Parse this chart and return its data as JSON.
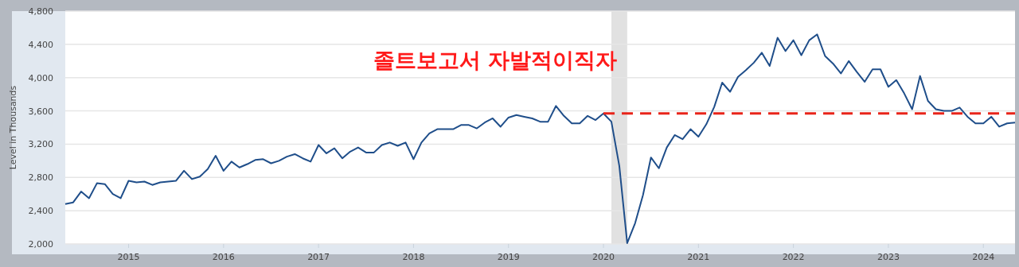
{
  "chart_data": {
    "type": "line",
    "ylabel": "Level in Thousands",
    "annotations": [
      "졸트보고서 자발적이직자"
    ],
    "xlim": [
      "2014-05",
      "2024-05"
    ],
    "xticks": [
      "2015",
      "2016",
      "2017",
      "2018",
      "2019",
      "2020",
      "2021",
      "2022",
      "2023",
      "2024"
    ],
    "ylim": [
      2000,
      4800
    ],
    "yticks": [
      {
        "value": 2000,
        "label": "2,000"
      },
      {
        "value": 2400,
        "label": "2,400"
      },
      {
        "value": 2800,
        "label": "2,800"
      },
      {
        "value": 3200,
        "label": "3,200"
      },
      {
        "value": 3600,
        "label": "3,600"
      },
      {
        "value": 4000,
        "label": "4,000"
      },
      {
        "value": 4400,
        "label": "4,400"
      },
      {
        "value": 4800,
        "label": "4,800"
      }
    ],
    "grid": "y",
    "bands": [
      {
        "axis": "x",
        "from": "2020-02",
        "to": "2020-04",
        "color": "#e1e1e1"
      }
    ],
    "x": [
      "2014-05",
      "2014-06",
      "2014-07",
      "2014-08",
      "2014-09",
      "2014-10",
      "2014-11",
      "2014-12",
      "2015-01",
      "2015-02",
      "2015-03",
      "2015-04",
      "2015-05",
      "2015-06",
      "2015-07",
      "2015-08",
      "2015-09",
      "2015-10",
      "2015-11",
      "2015-12",
      "2016-01",
      "2016-02",
      "2016-03",
      "2016-04",
      "2016-05",
      "2016-06",
      "2016-07",
      "2016-08",
      "2016-09",
      "2016-10",
      "2016-11",
      "2016-12",
      "2017-01",
      "2017-02",
      "2017-03",
      "2017-04",
      "2017-05",
      "2017-06",
      "2017-07",
      "2017-08",
      "2017-09",
      "2017-10",
      "2017-11",
      "2017-12",
      "2018-01",
      "2018-02",
      "2018-03",
      "2018-04",
      "2018-05",
      "2018-06",
      "2018-07",
      "2018-08",
      "2018-09",
      "2018-10",
      "2018-11",
      "2018-12",
      "2019-01",
      "2019-02",
      "2019-03",
      "2019-04",
      "2019-05",
      "2019-06",
      "2019-07",
      "2019-08",
      "2019-09",
      "2019-10",
      "2019-11",
      "2019-12",
      "2020-01",
      "2020-02",
      "2020-03",
      "2020-04",
      "2020-05",
      "2020-06",
      "2020-07",
      "2020-08",
      "2020-09",
      "2020-10",
      "2020-11",
      "2020-12",
      "2021-01",
      "2021-02",
      "2021-03",
      "2021-04",
      "2021-05",
      "2021-06",
      "2021-07",
      "2021-08",
      "2021-09",
      "2021-10",
      "2021-11",
      "2021-12",
      "2022-01",
      "2022-02",
      "2022-03",
      "2022-04",
      "2022-05",
      "2022-06",
      "2022-07",
      "2022-08",
      "2022-09",
      "2022-10",
      "2022-11",
      "2022-12",
      "2023-01",
      "2023-02",
      "2023-03",
      "2023-04",
      "2023-05",
      "2023-06",
      "2023-07",
      "2023-08",
      "2023-09",
      "2023-10",
      "2023-11",
      "2023-12",
      "2024-01",
      "2024-02",
      "2024-03",
      "2024-04",
      "2024-05"
    ],
    "series": [
      {
        "color": "#1f4e8a",
        "values": [
          2480,
          2500,
          2630,
          2550,
          2730,
          2720,
          2600,
          2550,
          2760,
          2740,
          2750,
          2710,
          2740,
          2750,
          2760,
          2880,
          2780,
          2810,
          2900,
          3060,
          2880,
          2990,
          2920,
          2960,
          3010,
          3020,
          2970,
          3000,
          3050,
          3080,
          3030,
          2990,
          3190,
          3090,
          3150,
          3030,
          3110,
          3160,
          3100,
          3100,
          3190,
          3220,
          3180,
          3220,
          3020,
          3220,
          3330,
          3380,
          3380,
          3380,
          3430,
          3430,
          3390,
          3460,
          3510,
          3410,
          3520,
          3550,
          3530,
          3510,
          3470,
          3470,
          3660,
          3540,
          3450,
          3450,
          3540,
          3490,
          3570,
          3470,
          2940,
          2010,
          2250,
          2590,
          3040,
          2910,
          3160,
          3310,
          3260,
          3380,
          3290,
          3440,
          3650,
          3940,
          3830,
          4010,
          4090,
          4180,
          4300,
          4140,
          4480,
          4320,
          4450,
          4270,
          4450,
          4520,
          4260,
          4170,
          4050,
          4200,
          4070,
          3950,
          4100,
          4100,
          3890,
          3970,
          3810,
          3620,
          4020,
          3720,
          3620,
          3600,
          3600,
          3640,
          3530,
          3450,
          3450,
          3530,
          3410,
          3450,
          3460
        ]
      },
      {
        "type": "line",
        "color": "#e8241a",
        "line_style": "dashed",
        "x": [
          "2020-01",
          "2024-05"
        ],
        "values": [
          3570,
          3570
        ]
      }
    ]
  }
}
